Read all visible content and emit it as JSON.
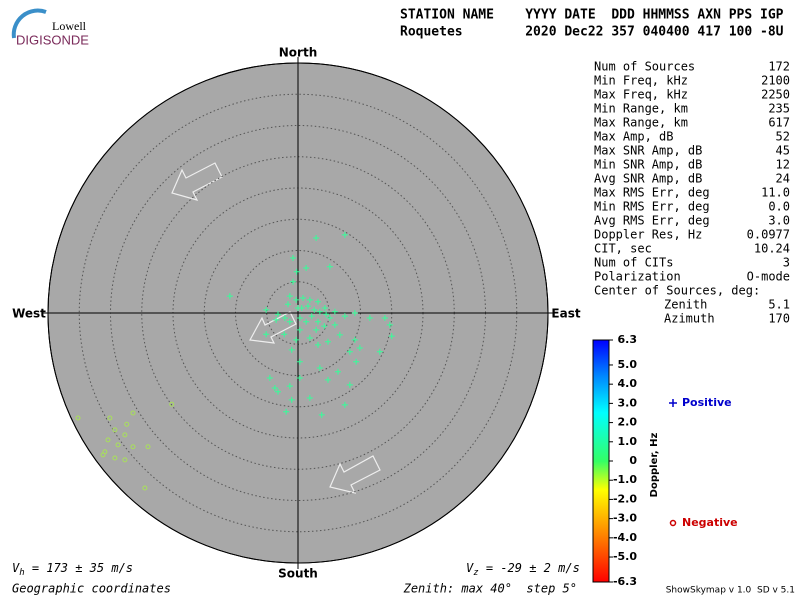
{
  "header": {
    "logo_top": "Lowell",
    "logo_bottom": "DIGISONDE",
    "columns": "STATION NAME    YYYY DATE  DDD HHMMSS AXN PPS IGP",
    "values": "Roquetes        2020 Dec22 357 040400 417 100 -8U"
  },
  "chart_data": {
    "type": "scatter",
    "directions": {
      "north": "North",
      "south": "South",
      "east": "East",
      "west": "West"
    },
    "xlim": [
      -40,
      40
    ],
    "ylim": [
      -40,
      40
    ],
    "rticks": [
      5,
      10,
      15,
      20,
      25,
      30,
      35,
      40
    ],
    "series": [
      {
        "name": "Positive",
        "color": "#33ff99",
        "legend_color": "#0000cc",
        "marker": "plus",
        "x": [
          7.5,
          2.9,
          -0.8,
          5.1,
          -0.2,
          1.3,
          -10.9,
          -0.8,
          -1.3,
          -0.3,
          0.8,
          1.9,
          3.2,
          4.3,
          5.9,
          7.5,
          9.1,
          11.5,
          13.9,
          -5.1,
          -3.2,
          -2.1,
          -1.3,
          0.3,
          1.3,
          2.2,
          3.2,
          4.2,
          5.1,
          0.3,
          -0.3,
          1.9,
          3.2,
          4.8,
          6.7,
          9.1,
          8.3,
          9.9,
          15.0,
          13.1,
          14.7,
          -5.1,
          -2.2,
          -1.0,
          0.3,
          3.5,
          6.4,
          9.3,
          -3.7,
          -1.3,
          -3.2,
          0.3,
          1.9,
          4.8,
          8.3,
          7.5,
          3.8,
          -1.0,
          -1.9,
          -4.5,
          2.9,
          3.5,
          0.6,
          1.6,
          2.6,
          4.5,
          0.0,
          -1.6,
          -3.5,
          5.9
        ],
        "values": [
          12.5,
          12.0,
          8.8,
          7.4,
          6.6,
          7.2,
          2.7,
          5.0,
          2.7,
          2.1,
          2.4,
          2.1,
          1.8,
          0.8,
          0.2,
          -0.5,
          0.0,
          -0.8,
          -0.8,
          0.5,
          -0.2,
          -0.8,
          -1.4,
          -0.8,
          -1.4,
          -0.5,
          -1.4,
          -2.1,
          -0.8,
          -2.7,
          -4.3,
          -4.0,
          -5.1,
          -4.6,
          -3.5,
          -4.3,
          -6.2,
          -5.6,
          -3.7,
          -6.2,
          -1.9,
          -3.4,
          -3.4,
          -5.9,
          -7.8,
          -8.8,
          -9.4,
          -7.8,
          -12.0,
          -11.7,
          -12.6,
          -10.4,
          -13.6,
          -10.7,
          -11.5,
          -14.7,
          -16.3,
          -13.9,
          -15.8,
          -10.4,
          -2.7,
          0.2,
          0.8,
          1.1,
          0.5,
          -0.2,
          0.8,
          1.4,
          -1.1,
          -1.9
        ]
      },
      {
        "name": "Negative",
        "color": "#a8e05a",
        "legend_color": "#cc0000",
        "marker": "circle",
        "x": [
          -35.2,
          -30.1,
          -26.4,
          -20.2,
          -29.3,
          -27.7,
          -30.4,
          -28.8,
          -26.4,
          -30.9,
          -29.3,
          -27.7,
          -24.0,
          -24.5,
          -31.2,
          -27.4
        ],
        "values": [
          -16.8,
          -16.8,
          -16.0,
          -14.6,
          -18.7,
          -19.5,
          -20.3,
          -21.1,
          -21.4,
          -22.2,
          -23.2,
          -23.5,
          -21.4,
          -28.0,
          -22.7,
          -17.8
        ]
      }
    ],
    "colorbar": {
      "label": "Doppler, Hz",
      "lim": [
        -6.3,
        6.3
      ],
      "ticks": [
        6.3,
        {
          "value": 5,
          "label": "5.0"
        },
        {
          "value": 4,
          "label": "4.0"
        },
        {
          "value": 3,
          "label": "3.0"
        },
        {
          "value": 2,
          "label": "2.0"
        },
        {
          "value": 1,
          "label": "1.0"
        },
        0,
        {
          "value": -1,
          "label": "-1.0"
        },
        {
          "value": -2,
          "label": "-2.0"
        },
        {
          "value": -3,
          "label": "-3.0"
        },
        {
          "value": -4,
          "label": "-4.0"
        },
        {
          "value": -5,
          "label": "-5.0"
        },
        -6.3
      ]
    }
  },
  "stats": [
    [
      "Num of Sources",
      "172"
    ],
    [
      "Min Freq, kHz",
      "2100"
    ],
    [
      "Max Freq, kHz",
      "2250"
    ],
    [
      "Min Range, km",
      "235"
    ],
    [
      "Max Range, km",
      "617"
    ],
    [
      "Max Amp, dB",
      "52"
    ],
    [
      "Max SNR Amp, dB",
      "45"
    ],
    [
      "Min SNR Amp, dB",
      "12"
    ],
    [
      "Avg SNR Amp, dB",
      "24"
    ],
    [
      "Max RMS Err, deg",
      "11.0"
    ],
    [
      "Min RMS Err, deg",
      "0.0"
    ],
    [
      "Avg RMS Err, deg",
      "3.0"
    ],
    [
      "Doppler Res, Hz",
      "0.0977"
    ],
    [
      "CIT, sec",
      "10.24"
    ],
    [
      "Num of CITs",
      "3"
    ],
    [
      "Polarization",
      "O-mode"
    ],
    [
      "Center of Sources, deg:"
    ],
    [
      "Zenith",
      "5.1"
    ],
    [
      "Azimuth",
      "170"
    ]
  ],
  "footer": {
    "vh": {
      "symbol": "V",
      "subscript": "h",
      "text": " = 173 ± 35 m/s"
    },
    "vz": {
      "symbol": "V",
      "subscript": "z",
      "text": " = -29 ± 2 m/s"
    },
    "coords": "Geographic coordinates",
    "zenith": "Zenith: max 40°  step 5°",
    "version": "ShowSkymap v 1.0  SD v 5.1"
  }
}
